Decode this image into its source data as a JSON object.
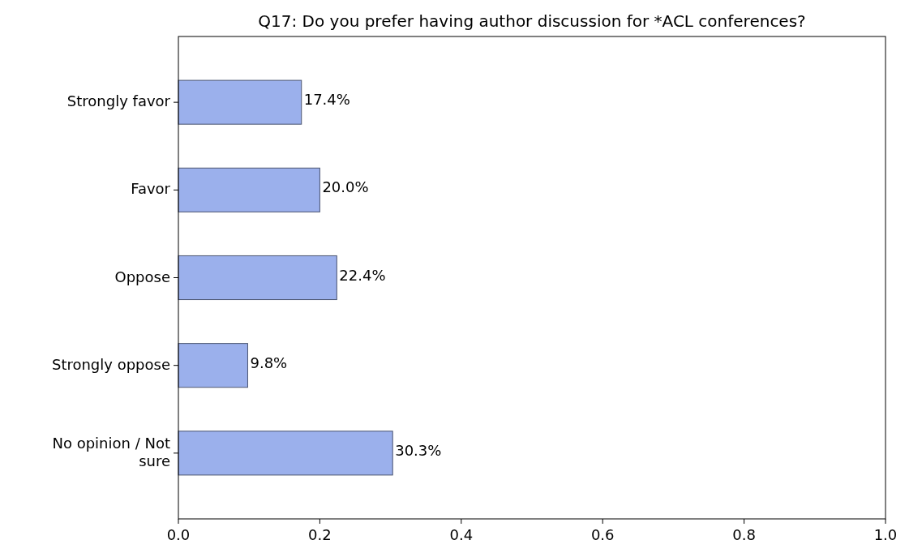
{
  "chart_data": {
    "type": "bar",
    "orientation": "horizontal",
    "title": "Q17: Do you prefer having author discussion for *ACL conferences?",
    "categories": [
      "Strongly favor",
      "Favor",
      "Oppose",
      "Strongly oppose",
      "No opinion / Not sure"
    ],
    "values": [
      0.174,
      0.2,
      0.224,
      0.098,
      0.303
    ],
    "value_labels": [
      "17.4%",
      "20.0%",
      "22.4%",
      "9.8%",
      "30.3%"
    ],
    "color": "#9bb0ec",
    "xlim": [
      0,
      1
    ],
    "xticks": [
      {
        "value": 0,
        "label": "0.0"
      },
      {
        "value": 0.2,
        "label": "0.2"
      },
      {
        "value": 0.4,
        "label": "0.4"
      },
      {
        "value": 0.6,
        "label": "0.6"
      },
      {
        "value": 0.8,
        "label": "0.8"
      },
      {
        "value": 1,
        "label": "1.0"
      }
    ],
    "grid": false
  }
}
